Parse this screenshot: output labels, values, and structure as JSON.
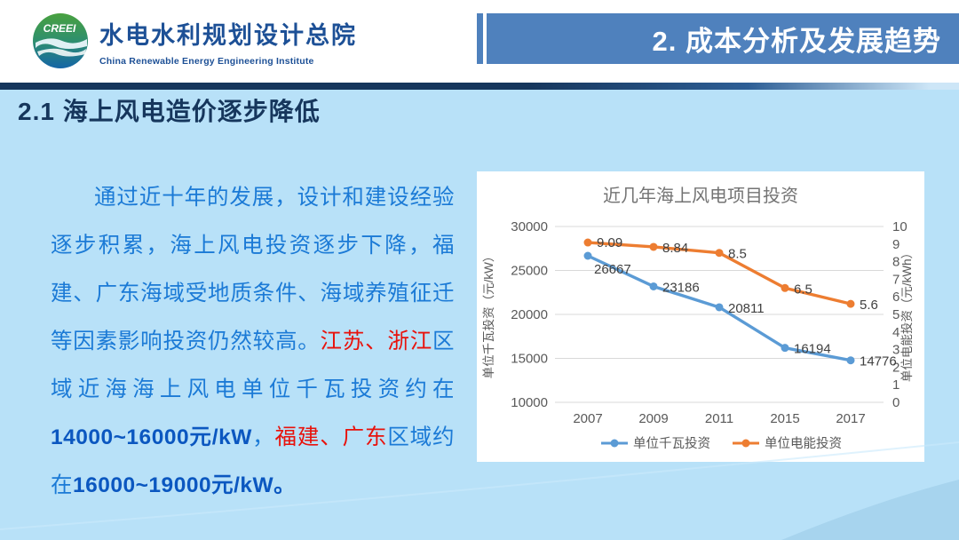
{
  "header": {
    "logo_text": "CREEI",
    "org_name_cn": "水电水利规划设计总院",
    "org_name_en": "China Renewable Energy Engineering Institute",
    "banner_title": "2. 成本分析及发展趋势"
  },
  "section_heading": "2.1 海上风电造价逐步降低",
  "paragraph": {
    "segments": [
      {
        "text": "通过近十年的发展，设计和建设经验逐步积累，海上风电投资逐步下降，福建、广东海域受地质条件、海域养殖征迁等因素影响投资仍然较高。",
        "style": "blue"
      },
      {
        "text": "江苏、浙江",
        "style": "red"
      },
      {
        "text": "区域近海海上风电单位千瓦投资约在",
        "style": "blue"
      },
      {
        "text": "14000~16000元/kW",
        "style": "blue-bold"
      },
      {
        "text": "，",
        "style": "blue"
      },
      {
        "text": "福建、广东",
        "style": "red"
      },
      {
        "text": "区域约在",
        "style": "blue"
      },
      {
        "text": "16000~19000元/kW。",
        "style": "blue-bold"
      }
    ]
  },
  "colors": {
    "slide_bg": "#b8e1f8",
    "banner_blue": "#4f81bd",
    "navy": "#16365c",
    "body_blue": "#1b7ad6",
    "accent_red": "#e8120c",
    "series_blue": "#5b9bd5",
    "series_orange": "#ed7d31"
  },
  "chart_data": {
    "type": "line",
    "title": "近几年海上风电项目投资",
    "categories": [
      "2007",
      "2009",
      "2011",
      "2015",
      "2017"
    ],
    "series": [
      {
        "name": "单位千瓦投资",
        "axis": "left",
        "color": "#5b9bd5",
        "values": [
          26667,
          23186,
          20811,
          16194,
          14776
        ],
        "labels": [
          "26667",
          "23186",
          "20811",
          "16194",
          "14776"
        ]
      },
      {
        "name": "单位电能投资",
        "axis": "right",
        "color": "#ed7d31",
        "values": [
          9.09,
          8.84,
          8.5,
          6.5,
          5.6
        ],
        "labels": [
          "9.09",
          "8.84",
          "8.5",
          "6.5",
          "5.6"
        ]
      }
    ],
    "left_axis": {
      "label": "单位千瓦投资（元/kW）",
      "min": 10000,
      "max": 30000,
      "ticks": [
        30000,
        25000,
        20000,
        15000,
        10000
      ]
    },
    "right_axis": {
      "label": "单位电能投资（元/kWh）",
      "min": 0,
      "max": 10,
      "ticks": [
        10,
        9,
        8,
        7,
        6,
        5,
        4,
        3,
        2,
        1,
        0
      ]
    },
    "grid": true,
    "legend_position": "bottom"
  }
}
